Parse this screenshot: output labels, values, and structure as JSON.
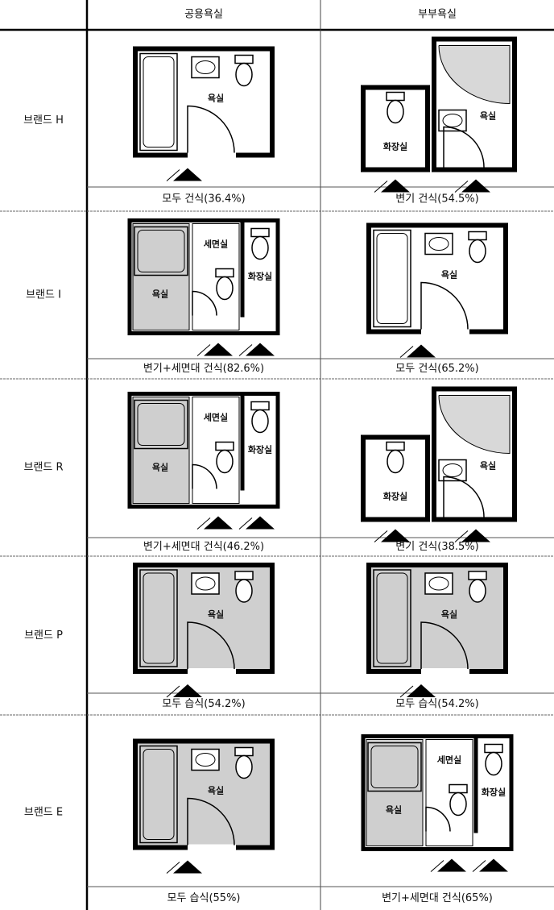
{
  "table": {
    "columns": [
      "공용욕실",
      "부부욕실"
    ],
    "rows": [
      {
        "brand": "브랜드 H",
        "cells": [
          {
            "caption": "모두 건식(36.4%)",
            "plan": {
              "labels": [
                "욕실"
              ],
              "fill": "#ffffff"
            }
          },
          {
            "caption": "변기 건식(54.5%)",
            "plan": {
              "labels": [
                "화장실",
                "욕실"
              ],
              "fill": "#ffffff"
            }
          }
        ]
      },
      {
        "brand": "브랜드 I",
        "cells": [
          {
            "caption": "변기+세면대 건식(82.6%)",
            "plan": {
              "labels": [
                "욕실",
                "세면실",
                "화장실"
              ],
              "fill": "#cfcfcf"
            }
          },
          {
            "caption": "모두 건식(65.2%)",
            "plan": {
              "labels": [
                "욕실"
              ],
              "fill": "#ffffff"
            }
          }
        ]
      },
      {
        "brand": "브랜드 R",
        "cells": [
          {
            "caption": "변기+세면대 건식(46.2%)",
            "plan": {
              "labels": [
                "욕실",
                "세면실",
                "화장실"
              ],
              "fill": "#cfcfcf"
            }
          },
          {
            "caption": "변기 건식(38.5%)",
            "plan": {
              "labels": [
                "화장실",
                "욕실"
              ],
              "fill": "#ffffff"
            }
          }
        ]
      },
      {
        "brand": "브랜드 P",
        "cells": [
          {
            "caption": "모두 습식(54.2%)",
            "plan": {
              "labels": [
                "욕실"
              ],
              "fill": "#cfcfcf"
            }
          },
          {
            "caption": "모두 습식(54.2%)",
            "plan": {
              "labels": [
                "욕실"
              ],
              "fill": "#cfcfcf"
            }
          }
        ]
      },
      {
        "brand": "브랜드 E",
        "cells": [
          {
            "caption": "모두 습식(55%)",
            "plan": {
              "labels": [
                "욕실"
              ],
              "fill": "#cfcfcf"
            }
          },
          {
            "caption": "변기+세면대 건식(65%)",
            "plan": {
              "labels": [
                "욕실",
                "세면실",
                "화장실"
              ],
              "fill": "#cfcfcf"
            }
          }
        ]
      }
    ]
  }
}
